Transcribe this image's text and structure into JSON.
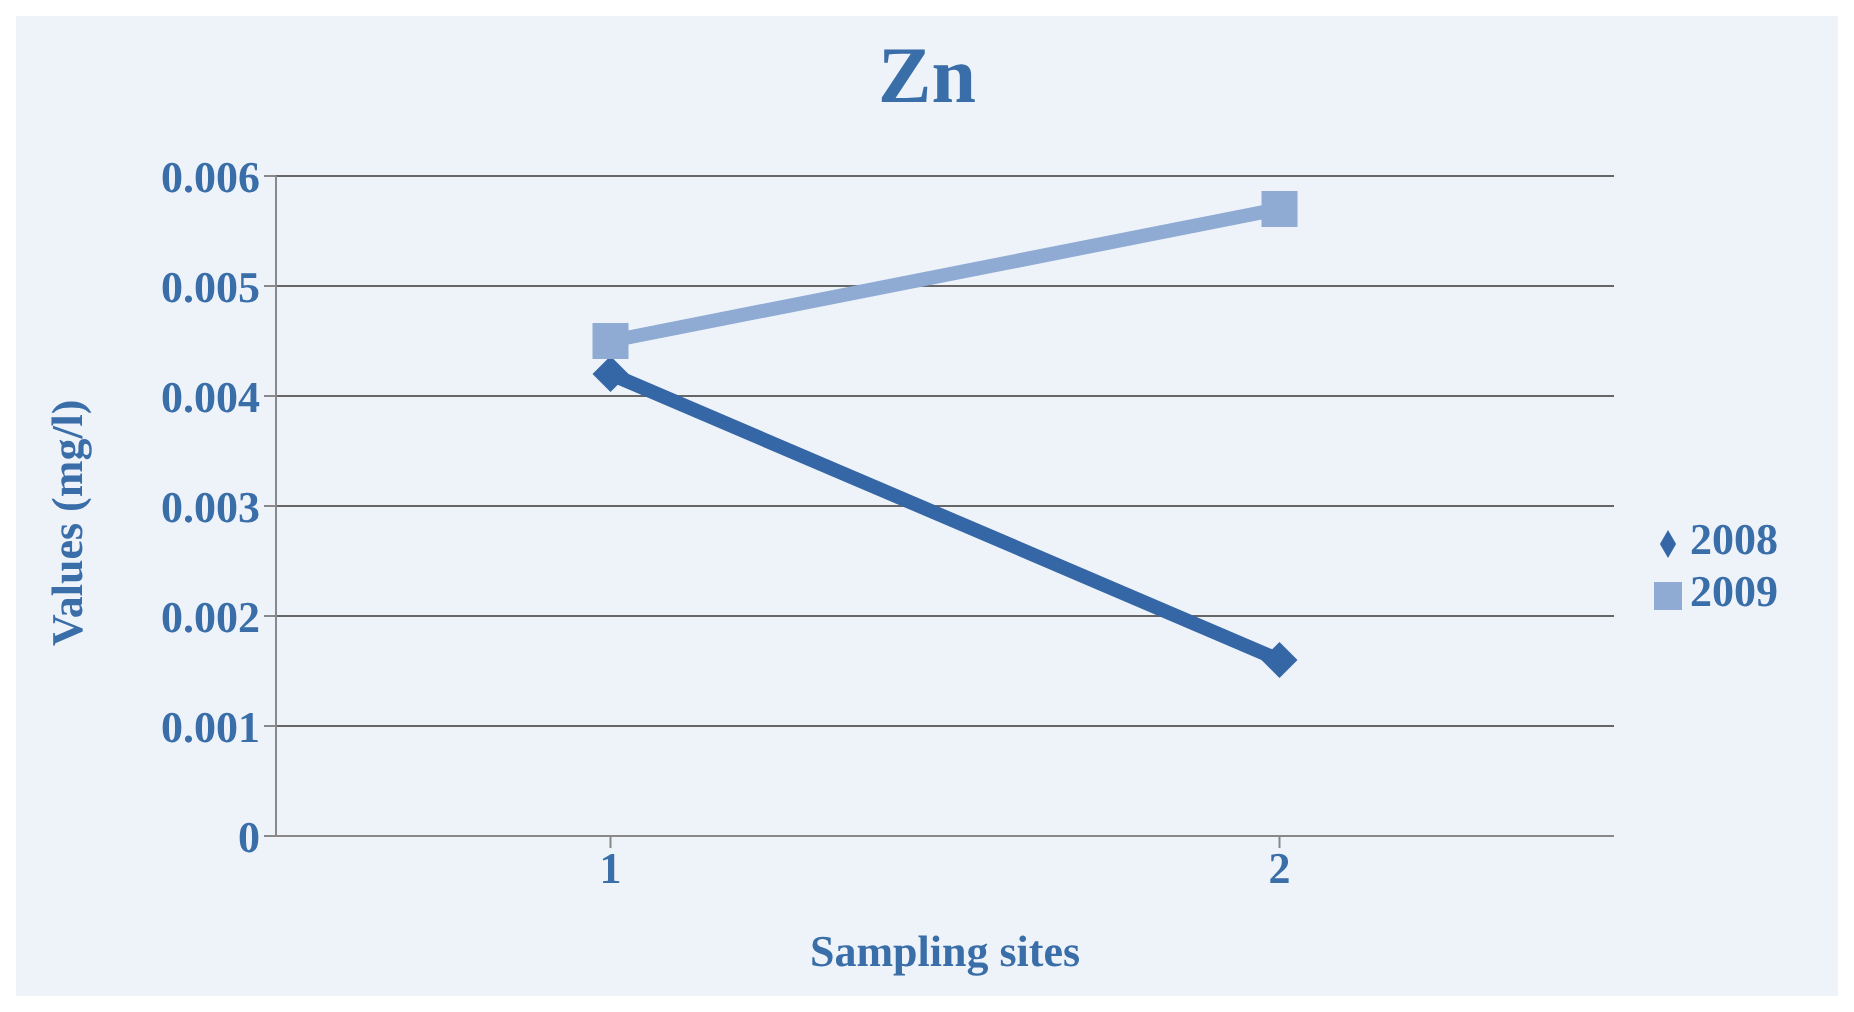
{
  "chart_data": {
    "type": "line",
    "title": "Zn",
    "xlabel": "Sampling sites",
    "ylabel": "Values (mg/l)",
    "categories": [
      "1",
      "2"
    ],
    "series": [
      {
        "name": "2008",
        "color": "#3566a6",
        "values": [
          0.0042,
          0.0016
        ],
        "marker": "diamond"
      },
      {
        "name": "2009",
        "color": "#8fabd4",
        "values": [
          0.0045,
          0.0057
        ],
        "marker": "square"
      }
    ],
    "ylim": [
      0,
      0.006
    ],
    "yticks": [
      0,
      0.001,
      0.002,
      0.003,
      0.004,
      0.005,
      0.006
    ],
    "grid": "y",
    "legend": "right",
    "line_style": "solid"
  }
}
